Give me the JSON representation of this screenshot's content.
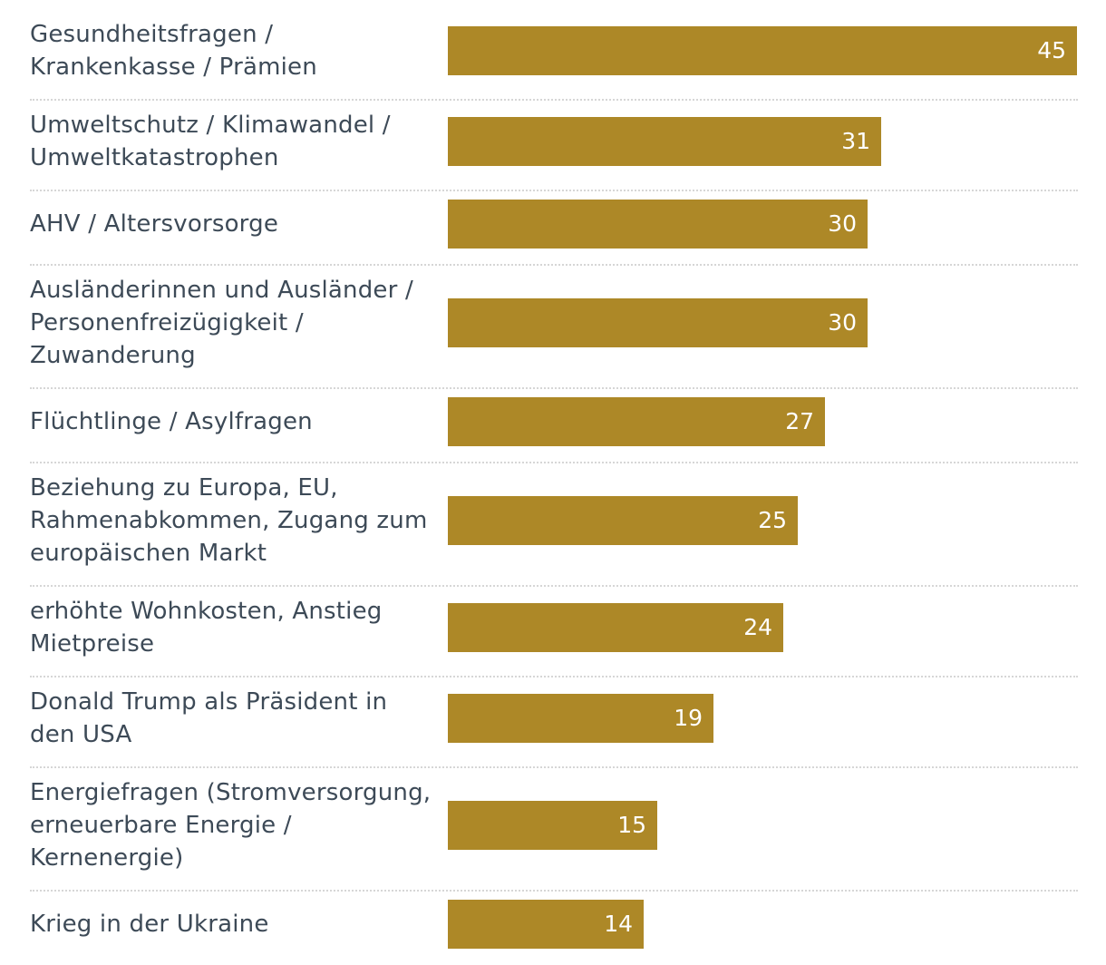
{
  "colors": {
    "bar": "#ad8827",
    "label_text": "#3d4a57",
    "value_text": "#ffffff",
    "divider": "#d6d6d6"
  },
  "chart_data": {
    "type": "bar",
    "orientation": "horizontal",
    "title": "",
    "xlabel": "",
    "ylabel": "",
    "xlim": [
      0,
      45
    ],
    "grid": false,
    "categories": [
      "Gesundheitsfragen / Krankenkasse / Prämien",
      "Umweltschutz / Klimawandel / Umweltkatastrophen",
      "AHV / Altersvorsorge",
      "Ausländerinnen und Ausländer / Personenfreizügigkeit / Zuwanderung",
      "Flüchtlinge / Asylfragen",
      "Beziehung zu Europa, EU, Rahmenabkommen, Zugang zum europäischen Markt",
      "erhöhte Wohnkosten, Anstieg Mietpreise",
      "Donald Trump als Präsident in den USA",
      "Energiefragen (Stromversorgung, erneuerbare Energie / Kernenergie)",
      "Krieg in der Ukraine"
    ],
    "values": [
      45,
      31,
      30,
      30,
      27,
      25,
      24,
      19,
      15,
      14
    ],
    "label_lines": [
      [
        "Gesundheitsfragen /",
        "Krankenkasse / Prämien"
      ],
      [
        "Umweltschutz / Klimawandel /",
        "Umweltkatastrophen"
      ],
      [
        "AHV / Altersvorsorge"
      ],
      [
        "Ausländerinnen und Ausländer /",
        "Personenfreizügigkeit /",
        "Zuwanderung"
      ],
      [
        "Flüchtlinge / Asylfragen"
      ],
      [
        "Beziehung zu Europa, EU,",
        "Rahmenabkommen, Zugang zum",
        "europäischen Markt"
      ],
      [
        "erhöhte Wohnkosten, Anstieg",
        "Mietpreise"
      ],
      [
        "Donald Trump als Präsident in",
        "den USA"
      ],
      [
        "Energiefragen (Stromversorgung,",
        "erneuerbare Energie /",
        "Kernenergie)"
      ],
      [
        "Krieg in der Ukraine"
      ]
    ]
  }
}
